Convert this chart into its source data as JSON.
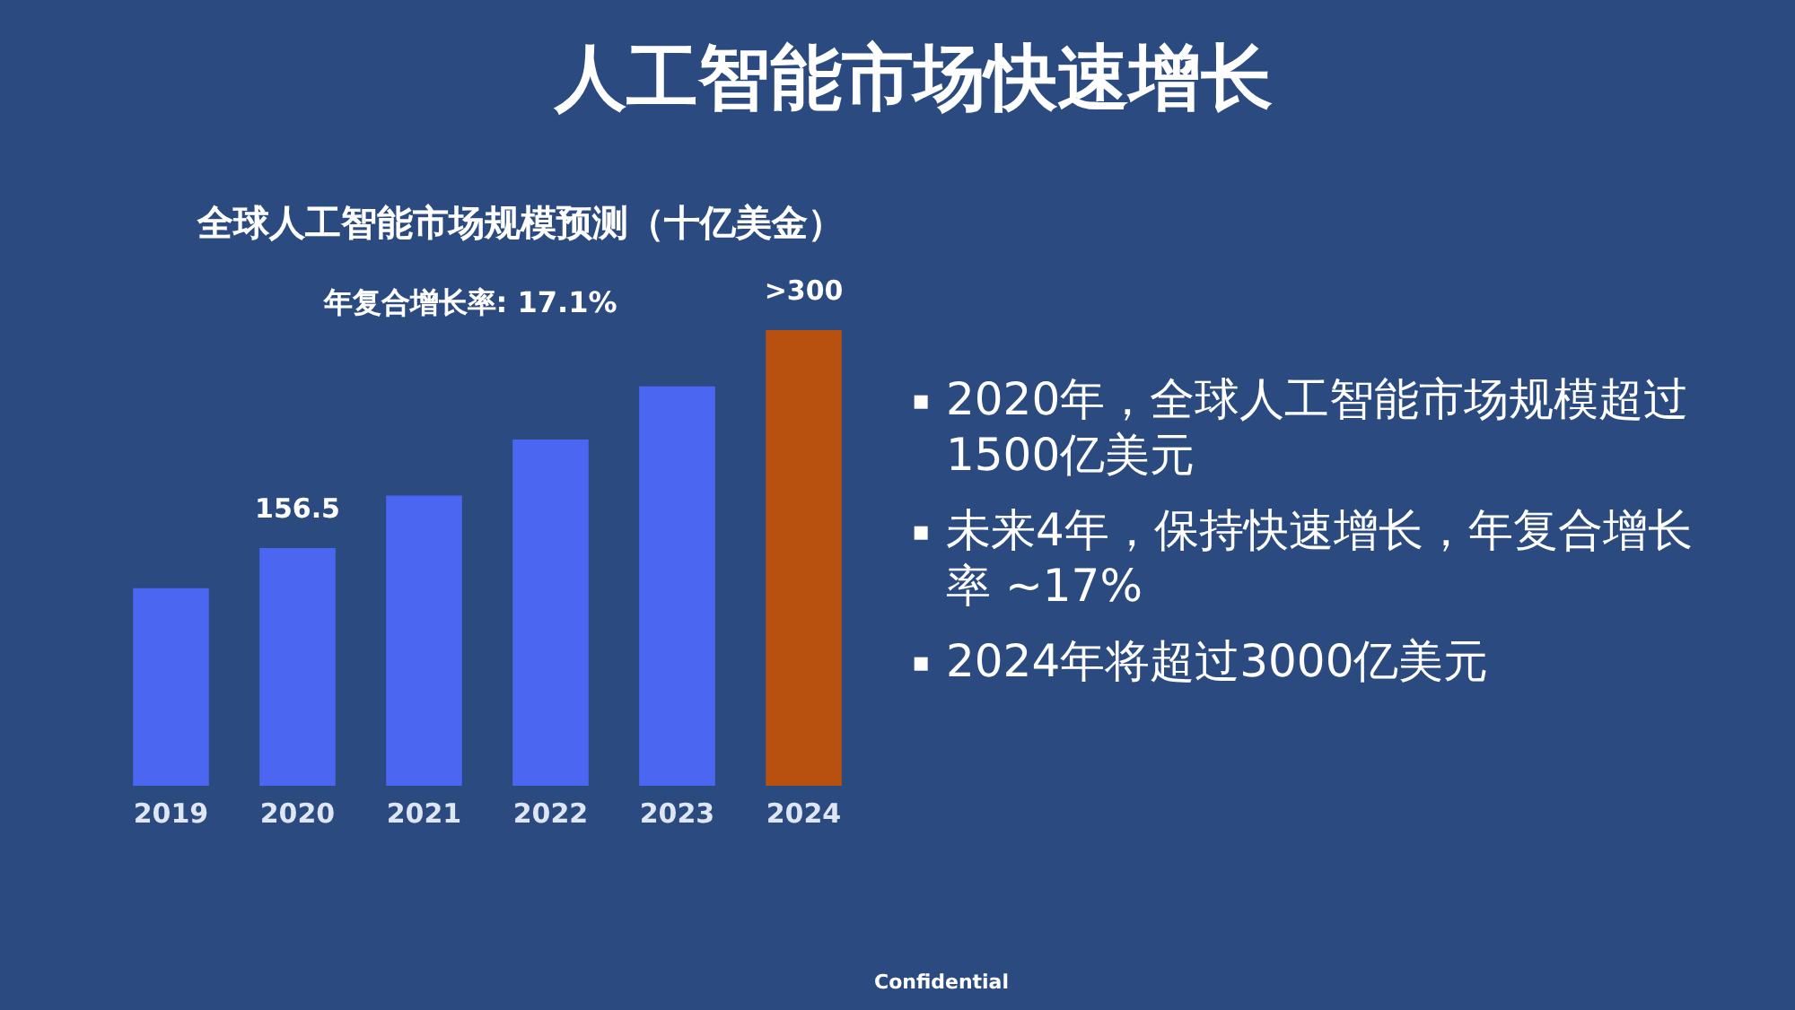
{
  "chart_data": {
    "type": "bar",
    "title": "人工智能市场快速增长",
    "subtitle": "全球人工智能市场规模预测（十亿美金）",
    "categories": [
      "2019",
      "2020",
      "2021",
      "2022",
      "2023",
      "2024"
    ],
    "values": [
      130,
      156.5,
      191,
      228,
      263,
      300
    ],
    "colors": [
      "#4b66f0",
      "#4b66f0",
      "#4b66f0",
      "#4b66f0",
      "#4b66f0",
      "#b8500f"
    ],
    "value_labels": [
      null,
      "156.5",
      null,
      null,
      null,
      ">300"
    ],
    "annotations": [
      "年复合增长率: 17.1%",
      "▪ 2020年，全球人工智能市场规模超过1500亿美元",
      "▪ 未来4年，保持快速增长，年复合增长率 ~17%",
      "▪ 2024年将超过3000亿美元",
      "Confidential"
    ]
  }
}
